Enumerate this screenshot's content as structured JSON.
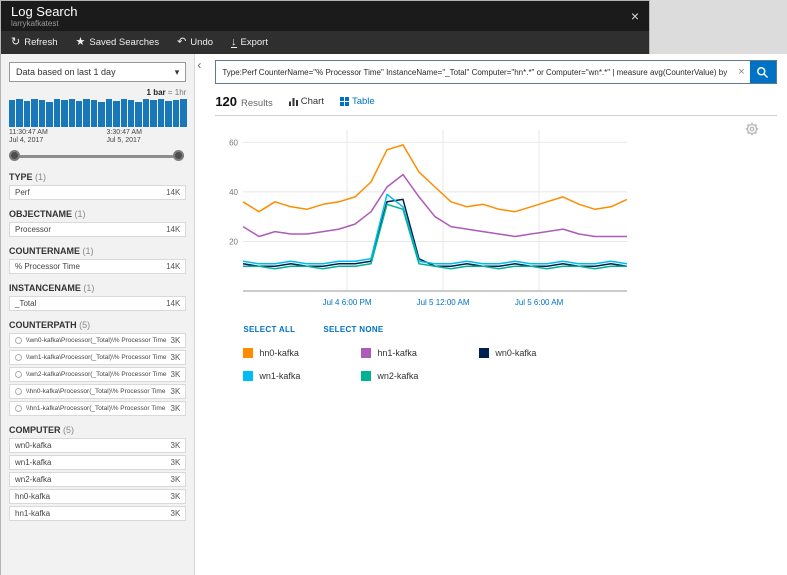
{
  "window": {
    "title": "Log Search",
    "subtitle": "larrykafkatest",
    "close_label": "×"
  },
  "toolbar": {
    "items": [
      {
        "label": "Refresh",
        "icon": "refresh-icon"
      },
      {
        "label": "Saved Searches",
        "icon": "star-icon"
      },
      {
        "label": "Undo",
        "icon": "undo-icon"
      },
      {
        "label": "Export",
        "icon": "export-icon"
      }
    ]
  },
  "sidebar": {
    "time_range": {
      "selected": "Data based on last 1 day"
    },
    "histogram": {
      "legend_bold": "1 bar",
      "legend_rest": " = 1hr",
      "bar_color": "#1878b9",
      "values": [
        0.96,
        1,
        0.92,
        1,
        0.97,
        0.9,
        1,
        0.95,
        1,
        0.93,
        1,
        0.97,
        0.9,
        1,
        0.94,
        1,
        0.96,
        0.91,
        1,
        0.95,
        1,
        0.92,
        0.97,
        1
      ],
      "start": {
        "time": "11:30:47 AM",
        "date": "Jul 4, 2017"
      },
      "end": {
        "time": "3:30:47 AM",
        "date": "Jul 5, 2017"
      }
    },
    "facets": [
      {
        "title": "TYPE",
        "count": "(1)",
        "checkable": false,
        "rows": [
          {
            "label": "Perf",
            "value": "14K"
          }
        ]
      },
      {
        "title": "OBJECTNAME",
        "count": "(1)",
        "checkable": false,
        "rows": [
          {
            "label": "Processor",
            "value": "14K"
          }
        ]
      },
      {
        "title": "COUNTERNAME",
        "count": "(1)",
        "checkable": false,
        "rows": [
          {
            "label": "% Processor Time",
            "value": "14K"
          }
        ]
      },
      {
        "title": "INSTANCENAME",
        "count": "(1)",
        "checkable": false,
        "rows": [
          {
            "label": "_Total",
            "value": "14K"
          }
        ]
      },
      {
        "title": "COUNTERPATH",
        "count": "(5)",
        "checkable": true,
        "rows": [
          {
            "label": "\\\\wn0-kafka\\Processor(_Total)\\% Processor Time",
            "value": "3K"
          },
          {
            "label": "\\\\wn1-kafka\\Processor(_Total)\\% Processor Time",
            "value": "3K"
          },
          {
            "label": "\\\\wn2-kafka\\Processor(_Total)\\% Processor Time",
            "value": "3K"
          },
          {
            "label": "\\\\hn0-kafka\\Processor(_Total)\\% Processor Time",
            "value": "3K"
          },
          {
            "label": "\\\\hn1-kafka\\Processor(_Total)\\% Processor Time",
            "value": "3K"
          }
        ]
      },
      {
        "title": "COMPUTER",
        "count": "(5)",
        "checkable": false,
        "rows": [
          {
            "label": "wn0-kafka",
            "value": "3K"
          },
          {
            "label": "wn1-kafka",
            "value": "3K"
          },
          {
            "label": "wn2-kafka",
            "value": "3K"
          },
          {
            "label": "hn0-kafka",
            "value": "3K"
          },
          {
            "label": "hn1-kafka",
            "value": "3K"
          }
        ]
      }
    ]
  },
  "main": {
    "query": "Type:Perf CounterName=\"% Processor Time\" InstanceName=\"_Total\" Computer=\"hn*.*\" or Computer=\"wn*.*\" | measure avg(CounterValue) by",
    "results": {
      "count": "120",
      "label": "Results"
    },
    "tabs": [
      {
        "label": "Chart"
      },
      {
        "label": "Table"
      }
    ],
    "select_all": "SELECT ALL",
    "select_none": "SELECT NONE",
    "accent_color": "#0072c6"
  },
  "chart_data": {
    "type": "line",
    "x_unit": "hour",
    "x_range": [
      "Jul 4 11:30 AM",
      "Jul 5 11:30 AM"
    ],
    "xticks": [
      {
        "label": "Jul 4 6:00 PM",
        "pos": 0.271
      },
      {
        "label": "Jul 5 12:00 AM",
        "pos": 0.521
      },
      {
        "label": "Jul 5 6:00 AM",
        "pos": 0.771
      }
    ],
    "ylim": [
      0,
      65
    ],
    "yticks": [
      20,
      40,
      60
    ],
    "grid": true,
    "legend_position": "bottom",
    "series": [
      {
        "name": "hn0-kafka",
        "color": "#ff8c00",
        "values": [
          36,
          32,
          36,
          34,
          33,
          35,
          36,
          38,
          44,
          57,
          59,
          48,
          42,
          36,
          34,
          35,
          33,
          32,
          34,
          36,
          38,
          35,
          33,
          34,
          37
        ]
      },
      {
        "name": "hn1-kafka",
        "color": "#ad5bb8",
        "values": [
          26,
          22,
          24,
          23,
          23,
          24,
          25,
          27,
          32,
          42,
          47,
          38,
          30,
          26,
          25,
          24,
          23,
          22,
          23,
          24,
          25,
          23,
          22,
          22,
          22
        ]
      },
      {
        "name": "wn0-kafka",
        "color": "#002050",
        "values": [
          11,
          10,
          10,
          11,
          10,
          10,
          11,
          11,
          12,
          36,
          37,
          13,
          10,
          10,
          11,
          10,
          10,
          11,
          10,
          10,
          11,
          10,
          10,
          11,
          10
        ]
      },
      {
        "name": "wn1-kafka",
        "color": "#00bcf2",
        "values": [
          12,
          11,
          11,
          12,
          11,
          11,
          12,
          12,
          13,
          39,
          34,
          12,
          11,
          11,
          12,
          11,
          11,
          12,
          11,
          11,
          12,
          11,
          11,
          12,
          11
        ]
      },
      {
        "name": "wn2-kafka",
        "color": "#00b294",
        "values": [
          10,
          10,
          9,
          10,
          10,
          9,
          10,
          10,
          11,
          35,
          33,
          11,
          10,
          9,
          10,
          10,
          9,
          10,
          10,
          9,
          10,
          10,
          9,
          10,
          10
        ]
      }
    ]
  }
}
